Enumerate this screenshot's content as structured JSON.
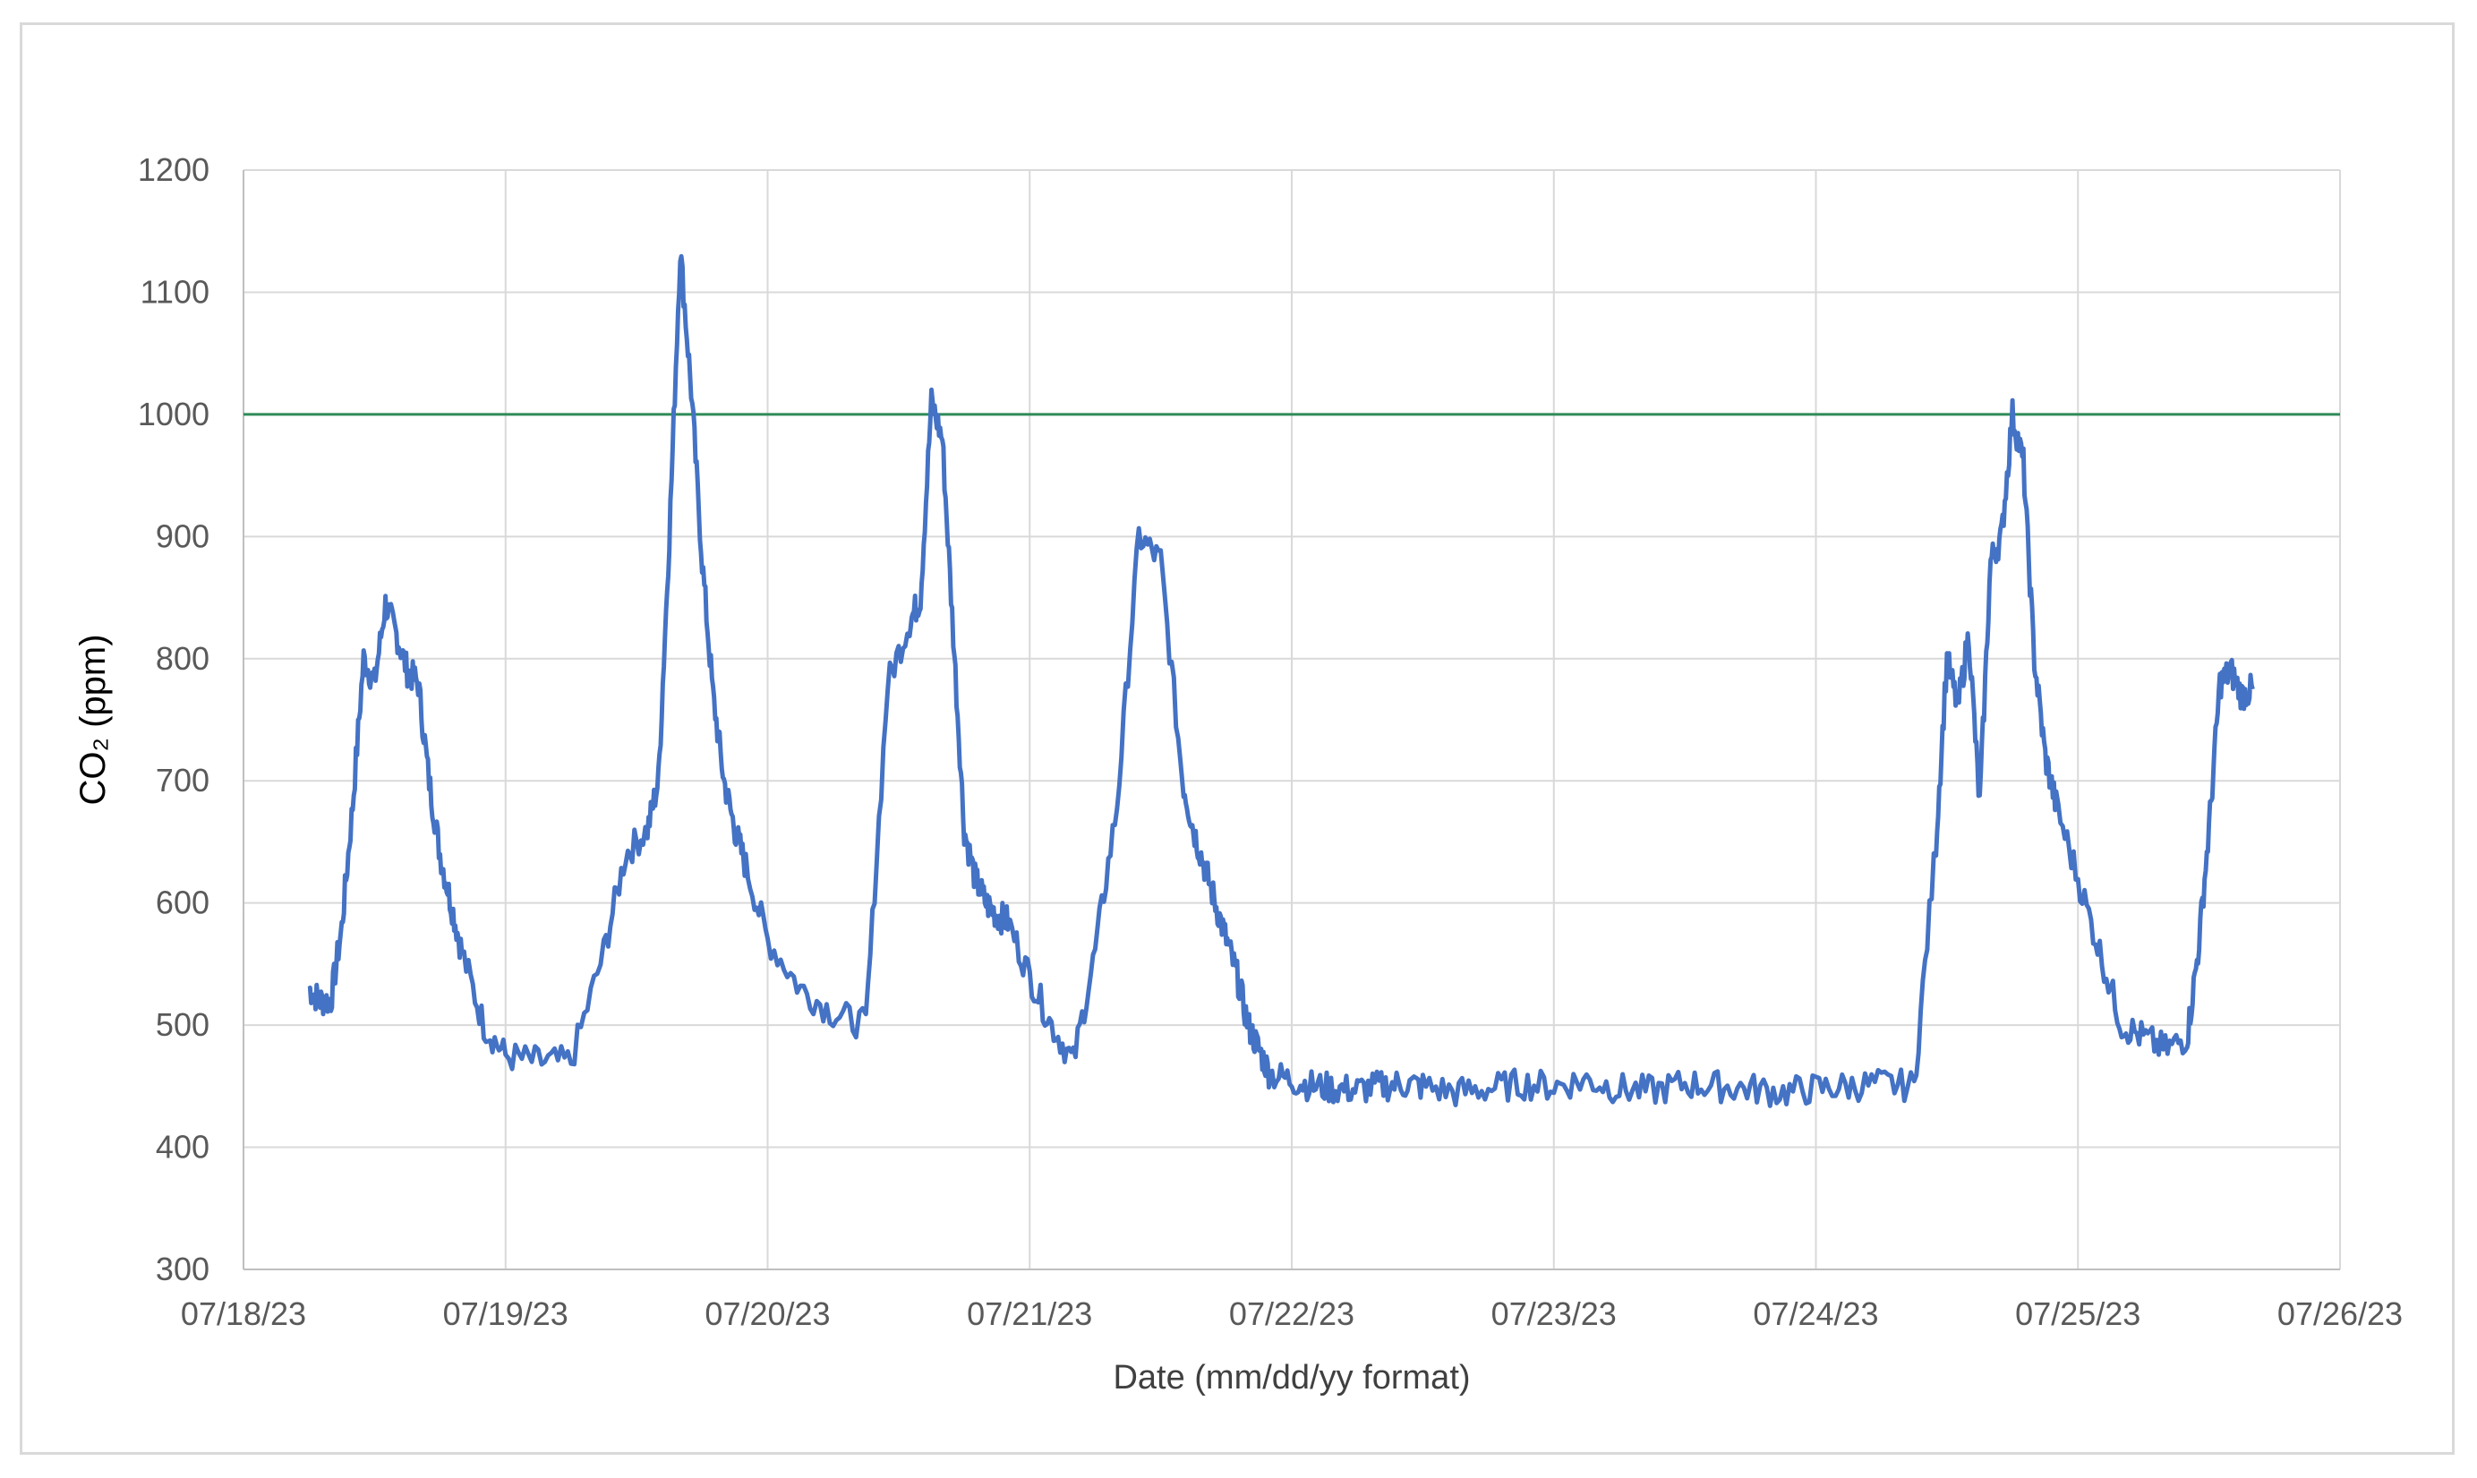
{
  "chart_data": {
    "type": "line",
    "title": "",
    "xlabel": "Date (mm/dd/yy format)",
    "ylabel": "CO₂ (ppm)",
    "ylim": [
      300,
      1200
    ],
    "yticks": [
      300,
      400,
      500,
      600,
      700,
      800,
      900,
      1000,
      1100,
      1200
    ],
    "xlim": [
      "07/18/23",
      "07/26/23"
    ],
    "xticks": [
      "07/18/23",
      "07/19/23",
      "07/20/23",
      "07/21/23",
      "07/22/23",
      "07/23/23",
      "07/24/23",
      "07/25/23",
      "07/26/23"
    ],
    "grid": true,
    "colors": {
      "series": "#4472c4",
      "threshold": "#2e8b57",
      "grid": "#d9d9d9",
      "axis": "#bfbfbf"
    },
    "reference_line": {
      "y": 1000
    },
    "series": [
      {
        "x": [
          "07/18/23 06:00",
          "07/18/23 07:00",
          "07/18/23 08:00",
          "07/18/23 09:00",
          "07/18/23 10:00",
          "07/18/23 11:00",
          "07/18/23 12:00",
          "07/18/23 13:00",
          "07/18/23 14:00",
          "07/18/23 15:00",
          "07/18/23 16:00",
          "07/18/23 17:00",
          "07/18/23 18:00",
          "07/18/23 19:00",
          "07/18/23 20:00",
          "07/18/23 22:00",
          "07/19/23 00:00",
          "07/19/23 03:00",
          "07/19/23 06:00",
          "07/19/23 09:00",
          "07/19/23 11:00",
          "07/19/23 13:00",
          "07/19/23 14:00",
          "07/19/23 15:00",
          "07/19/23 16:00",
          "07/19/23 17:00",
          "07/19/23 18:00",
          "07/19/23 19:00",
          "07/19/23 20:00",
          "07/19/23 21:00",
          "07/19/23 22:00",
          "07/20/23 00:00",
          "07/20/23 03:00",
          "07/20/23 06:00",
          "07/20/23 09:00",
          "07/20/23 11:00",
          "07/20/23 13:00",
          "07/20/23 14:00",
          "07/20/23 15:00",
          "07/20/23 16:00",
          "07/20/23 17:00",
          "07/20/23 18:00",
          "07/20/23 19:00",
          "07/20/23 20:00",
          "07/20/23 21:00",
          "07/20/23 22:00",
          "07/21/23 00:00",
          "07/21/23 02:00",
          "07/21/23 04:00",
          "07/21/23 06:00",
          "07/21/23 08:00",
          "07/21/23 10:00",
          "07/21/23 12:00",
          "07/21/23 14:00",
          "07/21/23 15:00",
          "07/21/23 16:00",
          "07/21/23 17:00",
          "07/21/23 18:00",
          "07/21/23 19:00",
          "07/21/23 20:00",
          "07/21/23 21:00",
          "07/21/23 22:00",
          "07/22/23 00:00",
          "07/22/23 02:00",
          "07/22/23 04:00",
          "07/22/23 06:00",
          "07/22/23 08:00",
          "07/22/23 10:00",
          "07/22/23 12:00",
          "07/22/23 15:00",
          "07/22/23 18:00",
          "07/22/23 21:00",
          "07/23/23 00:00",
          "07/23/23 03:00",
          "07/23/23 06:00",
          "07/23/23 09:00",
          "07/23/23 12:00",
          "07/23/23 15:00",
          "07/23/23 18:00",
          "07/23/23 21:00",
          "07/24/23 00:00",
          "07/24/23 03:00",
          "07/24/23 06:00",
          "07/24/23 09:00",
          "07/24/23 11:00",
          "07/24/23 12:00",
          "07/24/23 13:00",
          "07/24/23 14:00",
          "07/24/23 15:00",
          "07/24/23 16:00",
          "07/24/23 17:00",
          "07/24/23 18:00",
          "07/24/23 19:00",
          "07/24/23 20:00",
          "07/24/23 21:00",
          "07/24/23 22:00",
          "07/25/23 00:00",
          "07/25/23 02:00",
          "07/25/23 04:00",
          "07/25/23 06:00",
          "07/25/23 08:00",
          "07/25/23 10:00",
          "07/25/23 11:00",
          "07/25/23 12:00",
          "07/25/23 13:00",
          "07/25/23 14:00",
          "07/25/23 15:00",
          "07/25/23 16:00"
        ],
        "y": [
          530,
          520,
          520,
          580,
          680,
          800,
          780,
          845,
          820,
          790,
          780,
          700,
          640,
          600,
          560,
          500,
          475,
          470,
          470,
          560,
          640,
          660,
          700,
          900,
          1135,
          1020,
          880,
          770,
          700,
          660,
          630,
          570,
          530,
          510,
          500,
          780,
          830,
          850,
          1010,
          980,
          820,
          660,
          620,
          600,
          590,
          585,
          540,
          500,
          470,
          560,
          680,
          900,
          880,
          700,
          660,
          630,
          600,
          570,
          540,
          500,
          480,
          460,
          455,
          450,
          448,
          447,
          450,
          452,
          450,
          445,
          448,
          452,
          450,
          455,
          448,
          446,
          452,
          450,
          448,
          445,
          448,
          450,
          452,
          450,
          650,
          800,
          760,
          820,
          680,
          880,
          900,
          1000,
          960,
          800,
          720,
          680,
          620,
          560,
          500,
          490,
          480,
          490,
          560,
          660,
          780,
          790,
          770,
          775
        ]
      }
    ]
  }
}
